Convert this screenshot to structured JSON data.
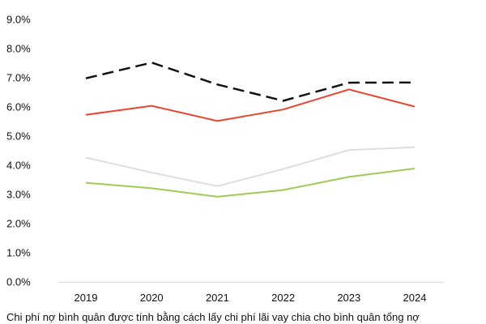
{
  "chart_data": {
    "type": "line",
    "title": "",
    "xlabel": "",
    "ylabel": "",
    "categories": [
      "2019",
      "2020",
      "2021",
      "2022",
      "2023",
      "2024"
    ],
    "ylim": [
      0,
      9
    ],
    "yticks": [
      "0.0%",
      "1.0%",
      "2.0%",
      "3.0%",
      "4.0%",
      "5.0%",
      "6.0%",
      "7.0%",
      "8.0%",
      "9.0%"
    ],
    "grid": false,
    "series": [
      {
        "name": "black-dashed",
        "color": "#111111",
        "dashed": true,
        "values": [
          6.98,
          7.52,
          6.77,
          6.21,
          6.83,
          6.84
        ]
      },
      {
        "name": "red",
        "color": "#e8452c",
        "dashed": false,
        "values": [
          5.73,
          6.04,
          5.52,
          5.91,
          6.6,
          6.01
        ]
      },
      {
        "name": "light-gray",
        "color": "#dedede",
        "dashed": false,
        "values": [
          4.26,
          3.75,
          3.28,
          3.87,
          4.52,
          4.62
        ]
      },
      {
        "name": "green",
        "color": "#9ccc55",
        "dashed": false,
        "values": [
          3.4,
          3.21,
          2.92,
          3.15,
          3.6,
          3.89
        ]
      }
    ]
  },
  "caption": "Chi phí nợ bình quân được tính bằng cách lấy chi phí lãi vay chia cho bình quân tổng nợ"
}
